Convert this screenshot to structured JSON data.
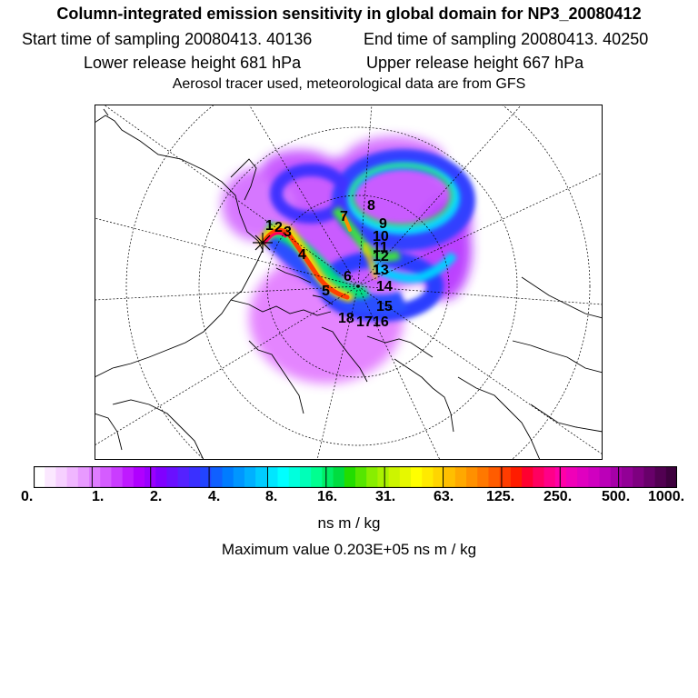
{
  "header": {
    "title": "Column-integrated emission sensitivity in global domain for NP3_20080412",
    "start_sampling": "Start time of sampling 20080413. 40136",
    "end_sampling": "End time of sampling 20080413. 40250",
    "lower_release": "Lower release height  681 hPa",
    "upper_release": "Upper release height  667 hPa",
    "tracer_info": "Aerosol tracer used, meteorological data are from GFS"
  },
  "map": {
    "projection": "north-polar-stereographic",
    "markers": [
      "1",
      "2",
      "3",
      "4",
      "5",
      "6",
      "7",
      "8",
      "9",
      "10",
      "11",
      "12",
      "13",
      "14",
      "15",
      "16",
      "17",
      "18"
    ],
    "origin_marker": "cross-icon"
  },
  "colorbar": {
    "tick_labels": [
      "0.",
      "1.",
      "2.",
      "4.",
      "8.",
      "16.",
      "31.",
      "63.",
      "125.",
      "250.",
      "500.",
      "1000."
    ],
    "colors": [
      "#ffffff",
      "#fbe8ff",
      "#f6d0ff",
      "#f0b6ff",
      "#e89aff",
      "#df7cff",
      "#d55cff",
      "#ca3cff",
      "#bf1aff",
      "#b000ff",
      "#9a00ff",
      "#8000ff",
      "#6a10ff",
      "#5522ff",
      "#3a30ff",
      "#2244ff",
      "#1060ff",
      "#007cff",
      "#0096ff",
      "#00b0ff",
      "#00ccff",
      "#00e6ff",
      "#00ffff",
      "#00ffdd",
      "#00ffb8",
      "#00ff90",
      "#00ee66",
      "#00dd40",
      "#22dd00",
      "#55e600",
      "#88ee00",
      "#aaf200",
      "#ccf500",
      "#e6f800",
      "#ffff00",
      "#ffea00",
      "#ffd500",
      "#ffbf00",
      "#ffa800",
      "#ff9000",
      "#ff7800",
      "#ff5c00",
      "#ff3c00",
      "#ff1c00",
      "#ff0030",
      "#ff0060",
      "#ff0088",
      "#ff00a8",
      "#f000b8",
      "#e000c0",
      "#d000c0",
      "#bb00b8",
      "#a600a8",
      "#920096",
      "#7e0080",
      "#68006a",
      "#520052",
      "#3e003e"
    ],
    "unit_label": "ns m / kg",
    "max_value_label": "Maximum value  0.203E+05 ns m / kg"
  }
}
